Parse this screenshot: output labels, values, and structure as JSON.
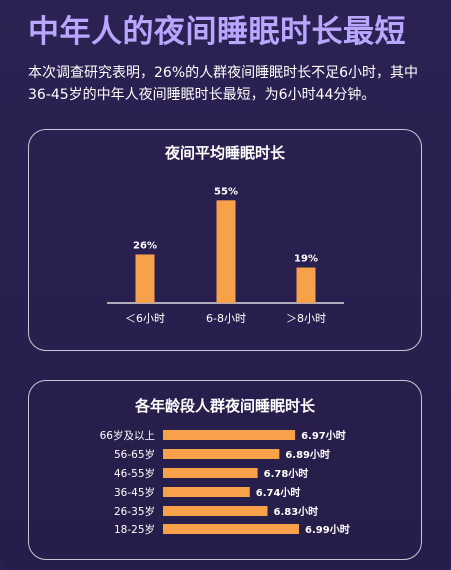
{
  "page": {
    "title": "中年人的夜间睡眠时长最短",
    "intro": "本次调查研究表明，26%的人群夜间睡眠时长不足6小时，其中36-45岁的中年人夜间睡眠时长最短，为6小时44分钟。"
  },
  "colors": {
    "background": "#2a2150",
    "title": "#b9a6ff",
    "bar": "#f7a24a",
    "border": "#ffffff"
  },
  "chart_data": [
    {
      "type": "bar",
      "title": "夜间平均睡眠时长",
      "categories": [
        "＜6小时",
        "6-8小时",
        "＞8小时"
      ],
      "values": [
        26,
        55,
        19
      ],
      "value_labels": [
        "26%",
        "55%",
        "19%"
      ],
      "ylim": [
        0,
        60
      ],
      "grid": false,
      "orientation": "vertical"
    },
    {
      "type": "bar",
      "title": "各年龄段人群夜间睡眠时长",
      "categories": [
        "66岁及以上",
        "56-65岁",
        "46-55岁",
        "36-45岁",
        "26-35岁",
        "18-25岁"
      ],
      "values": [
        6.97,
        6.89,
        6.78,
        6.74,
        6.83,
        6.99
      ],
      "value_labels": [
        "6.97小时",
        "6.89小时",
        "6.78小时",
        "6.74小时",
        "6.83小时",
        "6.99小时"
      ],
      "xlim": [
        6.3,
        7.0
      ],
      "grid": false,
      "orientation": "horizontal"
    }
  ]
}
